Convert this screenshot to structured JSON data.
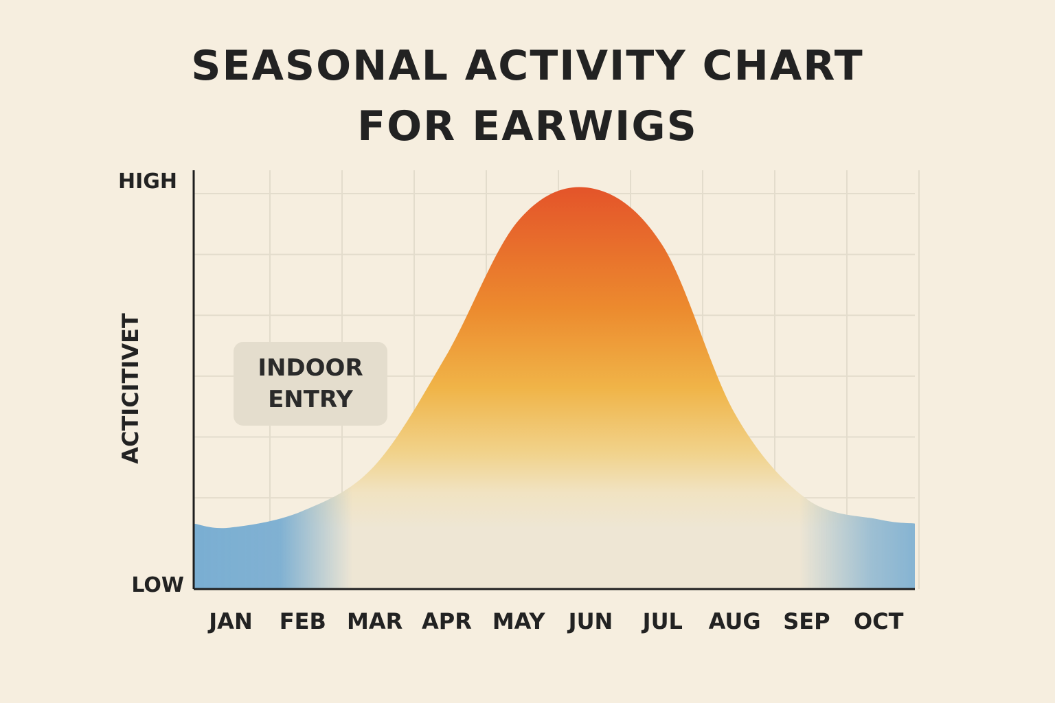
{
  "chart_data": {
    "type": "area",
    "title_lines": [
      "SEASONAL ACTIVITY CHART",
      "FOR EARWIGS"
    ],
    "xlabel": "",
    "ylabel": "ACTICITIVET",
    "categories": [
      "JAN",
      "FEB",
      "MAR",
      "APR",
      "MAY",
      "JUN",
      "JUL",
      "AUG",
      "SEP",
      "OCT"
    ],
    "y_tick_labels": {
      "low": "LOW",
      "high": "HIGH"
    },
    "ylim": [
      0,
      100
    ],
    "x": [
      "JAN",
      "FEB",
      "MAR",
      "APR",
      "MAY",
      "JUN",
      "JUL",
      "AUG",
      "SEP",
      "OCT"
    ],
    "values": [
      15,
      19,
      30,
      57,
      90,
      98,
      84,
      43,
      22,
      17
    ],
    "grid": true,
    "colors": {
      "low_activity": "#7fb0d2",
      "mid_activity": "#f0c060",
      "high_activity": "#e85a28",
      "background": "#f6eedf",
      "grid": "#e3dccc"
    },
    "annotations": [
      {
        "text_lines": [
          "INDOOR",
          "ENTRY"
        ],
        "near": "JAN-FEB"
      }
    ]
  }
}
